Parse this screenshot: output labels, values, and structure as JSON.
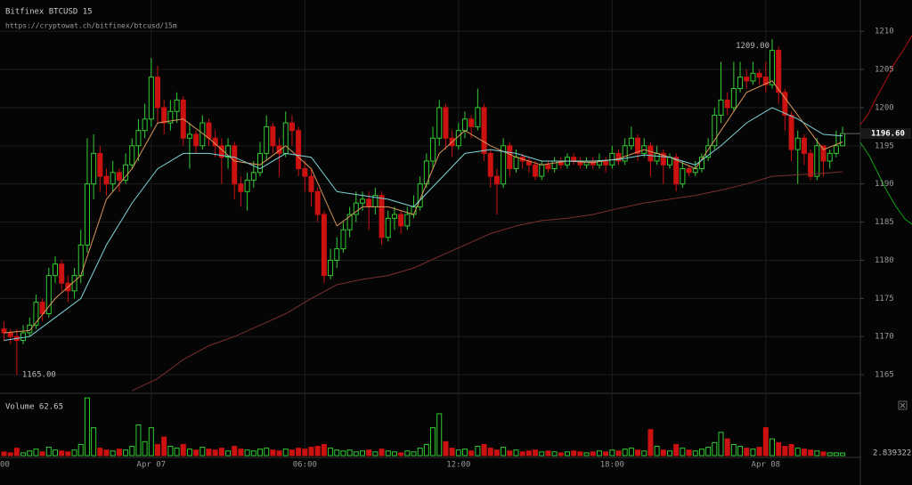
{
  "chart_data": {
    "type": "candlestick",
    "title": "Bitfinex BTCUSD 15",
    "subtitle": "https://cryptowat.ch/bitfinex/btcusd/15m",
    "xticks": [
      {
        "value": -1,
        "label": "18:00"
      },
      {
        "value": 23,
        "label": "Apr 07"
      },
      {
        "value": 47,
        "label": "06:00"
      },
      {
        "value": 71,
        "label": "12:00"
      },
      {
        "value": 95,
        "label": "18:00"
      },
      {
        "value": 119,
        "label": "Apr 08"
      }
    ],
    "ylim": [
      1162.8,
      1214.1
    ],
    "yticks": [
      1165,
      1170,
      1175,
      1180,
      1185,
      1190,
      1195,
      1200,
      1205,
      1210
    ],
    "grid": true,
    "up_color": "#33cc33",
    "down_color": "#cc1111",
    "open": [
      1171,
      1170.5,
      1170,
      1169.5,
      1170.5,
      1171.5,
      1174.5,
      1173,
      1178,
      1179.5,
      1177,
      1176,
      1178,
      1182,
      1190,
      1194,
      1191,
      1190,
      1191.5,
      1190.5,
      1192.5,
      1195,
      1197,
      1198.5,
      1204,
      1200,
      1198,
      1199.5,
      1201,
      1196,
      1196.5,
      1195,
      1198,
      1196,
      1195,
      1193.5,
      1195,
      1190,
      1189,
      1190.5,
      1191.5,
      1194,
      1197.5,
      1195,
      1194,
      1198,
      1197,
      1192,
      1191,
      1189,
      1186,
      1178,
      1180,
      1181.5,
      1184,
      1186,
      1187.5,
      1188,
      1187,
      1188.5,
      1183,
      1185.5,
      1186,
      1184.5,
      1186,
      1187,
      1190,
      1193,
      1196,
      1200,
      1196,
      1195,
      1197,
      1198.5,
      1197.5,
      1200,
      1194,
      1191,
      1190,
      1195,
      1192,
      1193.5,
      1193,
      1192.5,
      1191,
      1192.5,
      1192,
      1193,
      1192.5,
      1193.5,
      1193,
      1192.5,
      1193,
      1192.5,
      1193,
      1192.5,
      1194,
      1193,
      1195,
      1196,
      1194,
      1195,
      1193,
      1194,
      1192.5,
      1193.5,
      1190,
      1192,
      1191.5,
      1192,
      1193.5,
      1195,
      1199,
      1201,
      1200,
      1202.5,
      1204,
      1203.5,
      1204.5,
      1204,
      1203,
      1207.5,
      1202,
      1199,
      1194.5,
      1196,
      1194,
      1191,
      1195,
      1193,
      1194,
      1195
    ],
    "high": [
      1172,
      1171,
      1171,
      1171.5,
      1172.5,
      1175.5,
      1175,
      1179,
      1180.5,
      1180,
      1178,
      1179,
      1184,
      1196,
      1196.5,
      1195,
      1192,
      1193,
      1192,
      1194,
      1196,
      1198.5,
      1200.5,
      1206.5,
      1205.5,
      1201,
      1201,
      1202,
      1201.5,
      1198,
      1197,
      1199,
      1198.5,
      1197,
      1196,
      1196,
      1195.5,
      1191,
      1191.5,
      1193,
      1195.5,
      1199,
      1198,
      1196,
      1199.5,
      1199,
      1197.5,
      1193,
      1192,
      1189.5,
      1186.5,
      1181.5,
      1183,
      1185,
      1187,
      1189,
      1189,
      1189,
      1189.5,
      1189,
      1186.5,
      1187,
      1186.5,
      1187,
      1188.5,
      1191,
      1194,
      1197.5,
      1201,
      1200.5,
      1197,
      1198,
      1199.5,
      1199,
      1202.5,
      1200.5,
      1194.5,
      1192,
      1196,
      1195.5,
      1194.5,
      1194,
      1193.5,
      1193,
      1193,
      1193,
      1193.5,
      1193.5,
      1194,
      1194,
      1193.5,
      1193.5,
      1193.5,
      1194,
      1193.5,
      1195,
      1194.5,
      1196,
      1197.5,
      1196.5,
      1196,
      1195.5,
      1195,
      1194.5,
      1194,
      1194,
      1193,
      1192.5,
      1193,
      1194,
      1196,
      1200,
      1206,
      1202,
      1206,
      1206,
      1205,
      1206,
      1205,
      1206,
      1209,
      1208,
      1202.5,
      1199.5,
      1197,
      1196.5,
      1194.5,
      1196,
      1195,
      1194.5,
      1197,
      1197.5
    ],
    "low": [
      1169.5,
      1169,
      1165,
      1169,
      1170,
      1171,
      1172,
      1172.5,
      1177,
      1176,
      1174.5,
      1175,
      1177,
      1181,
      1188,
      1189,
      1188.5,
      1189,
      1189,
      1190,
      1192,
      1193,
      1196,
      1197.5,
      1198,
      1196.5,
      1197,
      1198,
      1195,
      1192,
      1194,
      1194.5,
      1195,
      1193.5,
      1190,
      1192,
      1188,
      1187,
      1186.5,
      1189.5,
      1191,
      1193,
      1194,
      1191,
      1193.5,
      1195,
      1191,
      1189,
      1187,
      1185,
      1177,
      1177.5,
      1179,
      1181,
      1183,
      1185,
      1186.5,
      1184,
      1186,
      1182,
      1182.5,
      1184,
      1183.5,
      1184,
      1185.5,
      1186.5,
      1189.5,
      1192,
      1195,
      1194.5,
      1193.5,
      1194.5,
      1196,
      1196,
      1197,
      1193,
      1189.5,
      1186,
      1189.5,
      1191,
      1191.5,
      1192,
      1191.5,
      1190.5,
      1190.5,
      1191.5,
      1191.5,
      1192,
      1192,
      1192.5,
      1192,
      1192,
      1192,
      1192,
      1191.5,
      1192,
      1192.5,
      1192.5,
      1194.5,
      1193,
      1193.5,
      1191,
      1192.5,
      1190,
      1192,
      1189,
      1189.5,
      1191,
      1191,
      1191.5,
      1193,
      1194.5,
      1198,
      1199,
      1199.5,
      1202,
      1202.5,
      1203,
      1203,
      1202,
      1202.5,
      1200.5,
      1197,
      1193,
      1190,
      1192.5,
      1190.5,
      1190.5,
      1191,
      1192,
      1193.5,
      1195
    ],
    "close": [
      1170.5,
      1170,
      1169.5,
      1170.5,
      1171.5,
      1174.5,
      1173,
      1178,
      1179.5,
      1177,
      1176,
      1178,
      1182,
      1190,
      1194,
      1191,
      1190,
      1191.5,
      1190.5,
      1192.5,
      1195,
      1197,
      1198.5,
      1204,
      1200,
      1198,
      1199.5,
      1201,
      1196,
      1196.5,
      1195,
      1198,
      1196,
      1195,
      1193.5,
      1195,
      1190,
      1189,
      1190.5,
      1191.5,
      1194,
      1197.5,
      1195,
      1194,
      1198,
      1197,
      1192,
      1191,
      1189,
      1186,
      1178,
      1180,
      1181.5,
      1184,
      1186,
      1187.5,
      1188,
      1187,
      1188.5,
      1183,
      1185.5,
      1186,
      1184.5,
      1186,
      1187,
      1190,
      1193,
      1196,
      1200,
      1196,
      1195,
      1197,
      1198.5,
      1197.5,
      1200,
      1194,
      1191,
      1190,
      1195,
      1192,
      1193.5,
      1193,
      1192.5,
      1191,
      1192.5,
      1192,
      1193,
      1192.5,
      1193.5,
      1193,
      1192.5,
      1193,
      1192.5,
      1193,
      1192.5,
      1194,
      1193,
      1195,
      1196,
      1194,
      1195,
      1193,
      1194,
      1192.5,
      1193.5,
      1190,
      1192,
      1191.5,
      1192,
      1193.5,
      1195,
      1199,
      1201,
      1200,
      1202.5,
      1204,
      1203.5,
      1204.5,
      1204,
      1203,
      1207.5,
      1202,
      1199,
      1194.5,
      1196,
      1194,
      1191,
      1195,
      1193,
      1194,
      1195,
      1196.6
    ],
    "indicators": [
      {
        "color": "#d9955a",
        "x": [
          0,
          4,
          8,
          12,
          16,
          20,
          24,
          28,
          32,
          36,
          40,
          44,
          48,
          52,
          56,
          60,
          64,
          68,
          72,
          76,
          80,
          84,
          88,
          92,
          96,
          100,
          104,
          108,
          112,
          116,
          120,
          124,
          128,
          131
        ],
        "values": [
          1170.5,
          1170.8,
          1175,
          1178,
          1188,
          1192,
          1198,
          1198.5,
          1196,
          1193,
          1192.5,
          1195,
          1192,
          1184.5,
          1187,
          1187,
          1186,
          1194,
          1197,
          1195,
          1193.5,
          1192.5,
          1193,
          1192.8,
          1193.3,
          1194.5,
          1193.5,
          1192,
          1197,
          1202,
          1203.5,
          1199,
          1194.5,
          1195.5
        ]
      },
      {
        "color": "#7fd3d8",
        "x": [
          0,
          4,
          8,
          12,
          16,
          20,
          24,
          28,
          32,
          36,
          40,
          44,
          48,
          52,
          56,
          60,
          64,
          68,
          72,
          76,
          80,
          84,
          88,
          92,
          96,
          100,
          104,
          108,
          112,
          116,
          120,
          124,
          128,
          131
        ],
        "values": [
          1169.5,
          1170,
          1172.5,
          1175,
          1182,
          1187.5,
          1192,
          1194,
          1194,
          1193.5,
          1192,
          1194,
          1193.5,
          1189,
          1188.5,
          1188,
          1187,
          1190.5,
          1194,
          1194.5,
          1194,
          1193,
          1193,
          1193,
          1193.2,
          1193.8,
          1193.5,
          1192.5,
          1195,
          1198,
          1200,
          1198.5,
          1196.5,
          1196.3
        ]
      },
      {
        "color": "#7a2e2e",
        "x": [
          20,
          24,
          28,
          32,
          36,
          40,
          44,
          48,
          52,
          56,
          60,
          64,
          68,
          72,
          76,
          80,
          84,
          88,
          92,
          96,
          100,
          104,
          108,
          112,
          116,
          120,
          124,
          128,
          131
        ],
        "values": [
          1162.9,
          1164.5,
          1167,
          1168.8,
          1170,
          1171.5,
          1173,
          1175,
          1176.8,
          1177.5,
          1178,
          1179,
          1180.5,
          1182,
          1183.5,
          1184.5,
          1185.2,
          1185.5,
          1186,
          1186.8,
          1187.5,
          1188,
          1188.5,
          1189.2,
          1190,
          1191,
          1191.2,
          1191.4,
          1191.6
        ]
      }
    ],
    "last_price": {
      "value": 1196.6,
      "label": "1196.60"
    },
    "annotations": {
      "high": {
        "value": 1209,
        "label": "1209.00"
      },
      "low": {
        "value": 1165,
        "label": "1165.00"
      }
    },
    "volume_title": "Volume 62.65",
    "vlim": [
      0,
      65
    ],
    "volume_last": 2.839322,
    "volume": [
      4,
      3,
      8,
      3,
      5,
      7,
      4,
      9,
      6,
      5,
      4,
      6,
      12,
      62,
      30,
      8,
      6,
      5,
      7,
      6,
      10,
      33,
      15,
      30,
      12,
      20,
      10,
      8,
      12,
      7,
      6,
      9,
      7,
      6,
      8,
      5,
      10,
      7,
      6,
      5,
      7,
      8,
      6,
      5,
      7,
      6,
      8,
      7,
      9,
      10,
      12,
      8,
      6,
      5,
      6,
      4,
      5,
      6,
      4,
      7,
      5,
      4,
      3,
      5,
      4,
      8,
      12,
      30,
      45,
      15,
      8,
      6,
      7,
      5,
      10,
      12,
      8,
      6,
      9,
      5,
      6,
      4,
      5,
      6,
      4,
      5,
      4,
      3,
      4,
      5,
      4,
      3,
      4,
      5,
      4,
      6,
      5,
      7,
      8,
      6,
      5,
      28,
      10,
      6,
      5,
      12,
      8,
      6,
      5,
      7,
      9,
      14,
      25,
      18,
      12,
      10,
      8,
      7,
      9,
      30,
      18,
      14,
      10,
      12,
      8,
      7,
      6,
      5,
      4,
      3,
      3,
      2.839322
    ]
  }
}
